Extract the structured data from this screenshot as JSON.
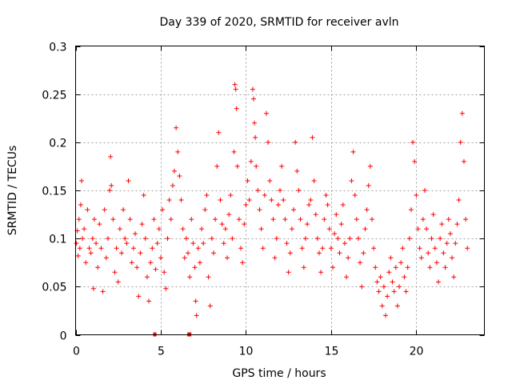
{
  "chart_data": {
    "type": "scatter",
    "title": "Day 339 of 2020, SRMTID for receiver avln",
    "xlabel": "GPS time / hours",
    "ylabel": "SRMTID / TECUs",
    "xlim": [
      0,
      24
    ],
    "ylim": [
      0,
      0.3
    ],
    "xticks": [
      0,
      5,
      10,
      15,
      20
    ],
    "xtick_labels": [
      "0",
      "5",
      "10",
      "15",
      "20"
    ],
    "yticks": [
      0,
      0.05,
      0.1,
      0.15,
      0.2,
      0.25,
      0.3
    ],
    "ytick_labels": [
      "0",
      "0.05",
      "0.1",
      "0.15",
      "0.2",
      "0.25",
      "0.3"
    ],
    "grid": true,
    "marker": "+",
    "series": [
      {
        "name": "SRMTID",
        "color": "#ff0000",
        "points": [
          [
            0.05,
            0.095
          ],
          [
            0.1,
            0.108
          ],
          [
            0.15,
            0.082
          ],
          [
            0.2,
            0.12
          ],
          [
            0.25,
            0.09
          ],
          [
            0.3,
            0.135
          ],
          [
            0.35,
            0.16
          ],
          [
            0.4,
            0.1
          ],
          [
            0.5,
            0.11
          ],
          [
            0.6,
            0.075
          ],
          [
            0.7,
            0.13
          ],
          [
            0.8,
            0.09
          ],
          [
            0.9,
            0.085
          ],
          [
            1.0,
            0.1
          ],
          [
            1.05,
            0.048
          ],
          [
            1.1,
            0.12
          ],
          [
            1.2,
            0.095
          ],
          [
            1.3,
            0.07
          ],
          [
            1.4,
            0.115
          ],
          [
            1.5,
            0.09
          ],
          [
            1.6,
            0.045
          ],
          [
            1.7,
            0.13
          ],
          [
            1.8,
            0.08
          ],
          [
            1.9,
            0.1
          ],
          [
            2.0,
            0.15
          ],
          [
            2.05,
            0.185
          ],
          [
            2.1,
            0.155
          ],
          [
            2.2,
            0.12
          ],
          [
            2.3,
            0.065
          ],
          [
            2.4,
            0.09
          ],
          [
            2.5,
            0.055
          ],
          [
            2.6,
            0.11
          ],
          [
            2.7,
            0.085
          ],
          [
            2.8,
            0.13
          ],
          [
            2.9,
            0.1
          ],
          [
            3.0,
            0.095
          ],
          [
            3.1,
            0.16
          ],
          [
            3.2,
            0.12
          ],
          [
            3.3,
            0.075
          ],
          [
            3.4,
            0.09
          ],
          [
            3.5,
            0.105
          ],
          [
            3.6,
            0.07
          ],
          [
            3.7,
            0.04
          ],
          [
            3.8,
            0.085
          ],
          [
            3.9,
            0.115
          ],
          [
            4.0,
            0.145
          ],
          [
            4.1,
            0.1
          ],
          [
            4.2,
            0.06
          ],
          [
            4.3,
            0.035
          ],
          [
            4.4,
            0.075
          ],
          [
            4.5,
            0.09
          ],
          [
            4.6,
            0.12
          ],
          [
            4.7,
            0.068
          ],
          [
            4.8,
            0.095
          ],
          [
            4.9,
            0.11
          ],
          [
            5.0,
            0.08
          ],
          [
            5.1,
            0.13
          ],
          [
            5.2,
            0.065
          ],
          [
            5.3,
            0.048
          ],
          [
            5.4,
            0.1
          ],
          [
            5.5,
            0.14
          ],
          [
            5.6,
            0.12
          ],
          [
            5.7,
            0.155
          ],
          [
            5.8,
            0.17
          ],
          [
            5.9,
            0.215
          ],
          [
            6.0,
            0.19
          ],
          [
            6.1,
            0.165
          ],
          [
            6.2,
            0.14
          ],
          [
            6.3,
            0.11
          ],
          [
            6.4,
            0.08
          ],
          [
            6.5,
            0.1
          ],
          [
            6.6,
            0.085
          ],
          [
            6.7,
            0.06
          ],
          [
            6.8,
            0.12
          ],
          [
            6.9,
            0.095
          ],
          [
            7.0,
            0.07
          ],
          [
            7.05,
            0.035
          ],
          [
            7.1,
            0.02
          ],
          [
            7.2,
            0.09
          ],
          [
            7.3,
            0.075
          ],
          [
            7.4,
            0.11
          ],
          [
            7.5,
            0.095
          ],
          [
            7.6,
            0.13
          ],
          [
            7.7,
            0.145
          ],
          [
            7.8,
            0.06
          ],
          [
            7.9,
            0.03
          ],
          [
            8.0,
            0.1
          ],
          [
            8.1,
            0.085
          ],
          [
            8.2,
            0.12
          ],
          [
            8.3,
            0.175
          ],
          [
            8.4,
            0.21
          ],
          [
            8.5,
            0.14
          ],
          [
            8.6,
            0.115
          ],
          [
            8.7,
            0.095
          ],
          [
            8.8,
            0.11
          ],
          [
            8.9,
            0.08
          ],
          [
            9.0,
            0.125
          ],
          [
            9.1,
            0.145
          ],
          [
            9.2,
            0.1
          ],
          [
            9.3,
            0.19
          ],
          [
            9.35,
            0.26
          ],
          [
            9.4,
            0.255
          ],
          [
            9.45,
            0.235
          ],
          [
            9.5,
            0.175
          ],
          [
            9.6,
            0.12
          ],
          [
            9.7,
            0.09
          ],
          [
            9.8,
            0.075
          ],
          [
            9.9,
            0.115
          ],
          [
            10.0,
            0.135
          ],
          [
            10.1,
            0.16
          ],
          [
            10.2,
            0.14
          ],
          [
            10.3,
            0.18
          ],
          [
            10.4,
            0.255
          ],
          [
            10.45,
            0.245
          ],
          [
            10.5,
            0.22
          ],
          [
            10.55,
            0.205
          ],
          [
            10.6,
            0.175
          ],
          [
            10.7,
            0.15
          ],
          [
            10.8,
            0.13
          ],
          [
            10.9,
            0.11
          ],
          [
            11.0,
            0.09
          ],
          [
            11.1,
            0.145
          ],
          [
            11.2,
            0.23
          ],
          [
            11.3,
            0.2
          ],
          [
            11.4,
            0.16
          ],
          [
            11.5,
            0.14
          ],
          [
            11.6,
            0.12
          ],
          [
            11.7,
            0.08
          ],
          [
            11.8,
            0.1
          ],
          [
            11.9,
            0.135
          ],
          [
            12.0,
            0.15
          ],
          [
            12.1,
            0.175
          ],
          [
            12.2,
            0.14
          ],
          [
            12.3,
            0.12
          ],
          [
            12.4,
            0.095
          ],
          [
            12.5,
            0.065
          ],
          [
            12.6,
            0.085
          ],
          [
            12.7,
            0.11
          ],
          [
            12.8,
            0.13
          ],
          [
            12.9,
            0.2
          ],
          [
            13.0,
            0.17
          ],
          [
            13.1,
            0.15
          ],
          [
            13.2,
            0.12
          ],
          [
            13.3,
            0.09
          ],
          [
            13.4,
            0.07
          ],
          [
            13.5,
            0.1
          ],
          [
            13.6,
            0.115
          ],
          [
            13.7,
            0.135
          ],
          [
            13.8,
            0.14
          ],
          [
            13.9,
            0.205
          ],
          [
            14.0,
            0.16
          ],
          [
            14.1,
            0.125
          ],
          [
            14.2,
            0.1
          ],
          [
            14.3,
            0.085
          ],
          [
            14.4,
            0.065
          ],
          [
            14.5,
            0.09
          ],
          [
            14.6,
            0.12
          ],
          [
            14.7,
            0.145
          ],
          [
            14.8,
            0.135
          ],
          [
            14.9,
            0.11
          ],
          [
            15.0,
            0.09
          ],
          [
            15.1,
            0.07
          ],
          [
            15.2,
            0.105
          ],
          [
            15.3,
            0.125
          ],
          [
            15.4,
            0.1
          ],
          [
            15.5,
            0.085
          ],
          [
            15.6,
            0.115
          ],
          [
            15.7,
            0.135
          ],
          [
            15.8,
            0.095
          ],
          [
            15.9,
            0.06
          ],
          [
            16.0,
            0.08
          ],
          [
            16.1,
            0.1
          ],
          [
            16.2,
            0.16
          ],
          [
            16.3,
            0.19
          ],
          [
            16.4,
            0.145
          ],
          [
            16.5,
            0.12
          ],
          [
            16.6,
            0.1
          ],
          [
            16.7,
            0.075
          ],
          [
            16.8,
            0.05
          ],
          [
            16.9,
            0.085
          ],
          [
            17.0,
            0.11
          ],
          [
            17.1,
            0.13
          ],
          [
            17.2,
            0.155
          ],
          [
            17.3,
            0.175
          ],
          [
            17.4,
            0.12
          ],
          [
            17.5,
            0.09
          ],
          [
            17.6,
            0.07
          ],
          [
            17.7,
            0.055
          ],
          [
            17.8,
            0.045
          ],
          [
            17.9,
            0.06
          ],
          [
            18.0,
            0.03
          ],
          [
            18.1,
            0.05
          ],
          [
            18.2,
            0.02
          ],
          [
            18.3,
            0.04
          ],
          [
            18.4,
            0.065
          ],
          [
            18.5,
            0.08
          ],
          [
            18.6,
            0.055
          ],
          [
            18.7,
            0.045
          ],
          [
            18.8,
            0.07
          ],
          [
            18.9,
            0.03
          ],
          [
            19.0,
            0.05
          ],
          [
            19.1,
            0.075
          ],
          [
            19.2,
            0.09
          ],
          [
            19.3,
            0.06
          ],
          [
            19.4,
            0.045
          ],
          [
            19.5,
            0.07
          ],
          [
            19.6,
            0.1
          ],
          [
            19.7,
            0.13
          ],
          [
            19.8,
            0.2
          ],
          [
            19.9,
            0.18
          ],
          [
            20.0,
            0.145
          ],
          [
            20.1,
            0.11
          ],
          [
            20.2,
            0.09
          ],
          [
            20.3,
            0.08
          ],
          [
            20.4,
            0.12
          ],
          [
            20.5,
            0.15
          ],
          [
            20.6,
            0.11
          ],
          [
            20.7,
            0.085
          ],
          [
            20.8,
            0.07
          ],
          [
            20.9,
            0.1
          ],
          [
            21.0,
            0.125
          ],
          [
            21.1,
            0.09
          ],
          [
            21.2,
            0.075
          ],
          [
            21.3,
            0.055
          ],
          [
            21.4,
            0.1
          ],
          [
            21.5,
            0.115
          ],
          [
            21.6,
            0.085
          ],
          [
            21.7,
            0.07
          ],
          [
            21.8,
            0.095
          ],
          [
            21.9,
            0.12
          ],
          [
            22.0,
            0.105
          ],
          [
            22.1,
            0.08
          ],
          [
            22.2,
            0.06
          ],
          [
            22.3,
            0.095
          ],
          [
            22.4,
            0.115
          ],
          [
            22.5,
            0.14
          ],
          [
            22.6,
            0.2
          ],
          [
            22.7,
            0.23
          ],
          [
            22.8,
            0.18
          ],
          [
            22.9,
            0.12
          ],
          [
            23.0,
            0.09
          ]
        ]
      }
    ],
    "zero_markers": [
      4.65,
      6.65,
      6.7
    ]
  }
}
